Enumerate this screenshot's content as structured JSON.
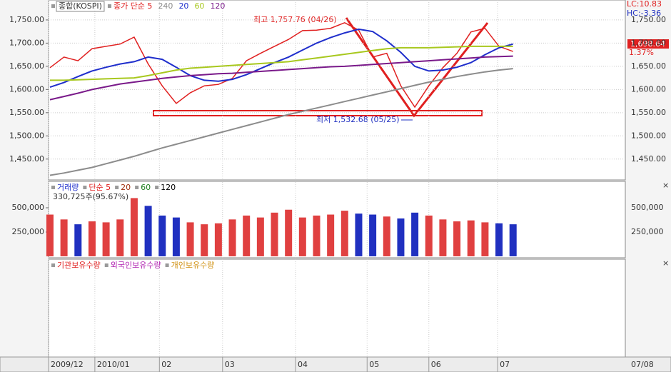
{
  "chart_data": [
    {
      "type": "line",
      "legend_box": "종합(KOSPI)",
      "x": [
        0,
        1,
        2,
        3,
        4,
        5,
        6,
        7,
        8,
        9,
        10,
        11,
        12,
        13,
        14,
        15,
        16,
        17,
        18,
        19,
        20,
        21,
        22,
        23,
        24,
        25,
        26,
        27,
        28,
        29,
        30,
        31,
        32,
        33
      ],
      "xlim": [
        -0.1,
        41.0
      ],
      "xticks": [
        {
          "value": -0.1,
          "label": "2009/12"
        },
        {
          "value": 3.2,
          "label": "2010/01"
        },
        {
          "value": 7.8,
          "label": "02"
        },
        {
          "value": 12.3,
          "label": "03"
        },
        {
          "value": 17.5,
          "label": "04"
        },
        {
          "value": 22.6,
          "label": "05"
        },
        {
          "value": 27.0,
          "label": "06"
        },
        {
          "value": 31.9,
          "label": "07"
        }
      ],
      "end_date": "07/08",
      "ylim": [
        1405,
        1793
      ],
      "yticks": [
        {
          "value": 1450,
          "label": "1,450.00"
        },
        {
          "value": 1500,
          "label": "1,500.00"
        },
        {
          "value": 1550,
          "label": "1,550.00"
        },
        {
          "value": 1600,
          "label": "1,600.00"
        },
        {
          "value": 1650,
          "label": "1,650.00"
        },
        {
          "value": 1700,
          "label": "1,700.00"
        },
        {
          "value": 1750,
          "label": "1,750.00"
        }
      ],
      "grid": true,
      "series": [
        {
          "name": "종가 단순 5",
          "color": "#e02020",
          "values": [
            1647,
            1670,
            1662,
            1688,
            1693,
            1698,
            1713,
            1655,
            1608,
            1570,
            1593,
            1608,
            1611,
            1624,
            1662,
            1678,
            1693,
            1708,
            1727,
            1728,
            1732,
            1744,
            1728,
            1670,
            1678,
            1608,
            1562,
            1608,
            1647,
            1678,
            1724,
            1732,
            1693,
            1682
          ]
        },
        {
          "name": "240",
          "color": "#8c8c8c",
          "values": [
            1415,
            1420,
            1426,
            1432,
            1440,
            1448,
            1456,
            1465,
            1474,
            1482,
            1490,
            1498,
            1506,
            1514,
            1522,
            1530,
            1538,
            1546,
            1553,
            1560,
            1567,
            1574,
            1581,
            1588,
            1595,
            1602,
            1609,
            1616,
            1622,
            1628,
            1633,
            1638,
            1642,
            1645
          ]
        },
        {
          "name": "20",
          "color": "#1f2ecc",
          "values": [
            1605,
            1615,
            1628,
            1640,
            1648,
            1655,
            1660,
            1670,
            1665,
            1648,
            1630,
            1620,
            1618,
            1622,
            1632,
            1645,
            1658,
            1670,
            1685,
            1700,
            1712,
            1722,
            1730,
            1725,
            1705,
            1680,
            1650,
            1640,
            1642,
            1648,
            1658,
            1675,
            1690,
            1698
          ]
        },
        {
          "name": "60",
          "color": "#a8c81e",
          "values": [
            1620,
            1620,
            1621,
            1622,
            1623,
            1624,
            1625,
            1630,
            1636,
            1642,
            1646,
            1648,
            1650,
            1652,
            1654,
            1656,
            1658,
            1660,
            1664,
            1668,
            1672,
            1676,
            1680,
            1684,
            1688,
            1690,
            1690,
            1690,
            1691,
            1692,
            1693,
            1693,
            1693,
            1693
          ]
        },
        {
          "name": "120",
          "color": "#7a1a8a",
          "values": [
            1578,
            1585,
            1592,
            1600,
            1606,
            1612,
            1616,
            1620,
            1624,
            1627,
            1630,
            1632,
            1634,
            1635,
            1637,
            1639,
            1641,
            1643,
            1645,
            1647,
            1649,
            1650,
            1652,
            1654,
            1656,
            1658,
            1660,
            1662,
            1664,
            1666,
            1668,
            1670,
            1671,
            1672
          ]
        }
      ],
      "annotations": {
        "high": "최고 1,757.76 (04/26)",
        "low": "최저 1,532.68 (05/25)",
        "lc": "LC:10.83",
        "hc": "HC:-3.36",
        "last": "1,698.64",
        "change": "1.37%"
      }
    },
    {
      "type": "bar",
      "legend": [
        {
          "label": "거래량",
          "color": "#1f2ecc"
        },
        {
          "label": "단순 5",
          "color": "#e02020"
        },
        {
          "label": "20",
          "color": "#a03010"
        },
        {
          "label": "60",
          "color": "#208020"
        },
        {
          "label": "120",
          "color": "#000000"
        }
      ],
      "info": "330,725주(95.67%)",
      "x": [
        0,
        1,
        2,
        3,
        4,
        5,
        6,
        7,
        8,
        9,
        10,
        11,
        12,
        13,
        14,
        15,
        16,
        17,
        18,
        19,
        20,
        21,
        22,
        23,
        24,
        25,
        26,
        27,
        28,
        29,
        30,
        31,
        32,
        33
      ],
      "xlim": [
        -0.1,
        41.0
      ],
      "ylim": [
        -15000,
        765000
      ],
      "yticks": [
        {
          "value": 250000,
          "label": "250,000"
        },
        {
          "value": 500000,
          "label": "500,000"
        }
      ],
      "up_color": "#e04040",
      "down_color": "#2030c0",
      "values": [
        430000,
        380000,
        330000,
        360000,
        350000,
        380000,
        600000,
        520000,
        420000,
        400000,
        350000,
        330000,
        340000,
        380000,
        420000,
        400000,
        450000,
        480000,
        400000,
        420000,
        430000,
        470000,
        440000,
        430000,
        410000,
        390000,
        450000,
        420000,
        380000,
        360000,
        370000,
        350000,
        340000,
        330000
      ]
    },
    {
      "type": "line",
      "legend": [
        {
          "label": "기관보유수량",
          "color": "#e02020"
        },
        {
          "label": "외국인보유수량",
          "color": "#b020b0"
        },
        {
          "label": "개인보유수량",
          "color": "#d09010"
        }
      ]
    }
  ]
}
